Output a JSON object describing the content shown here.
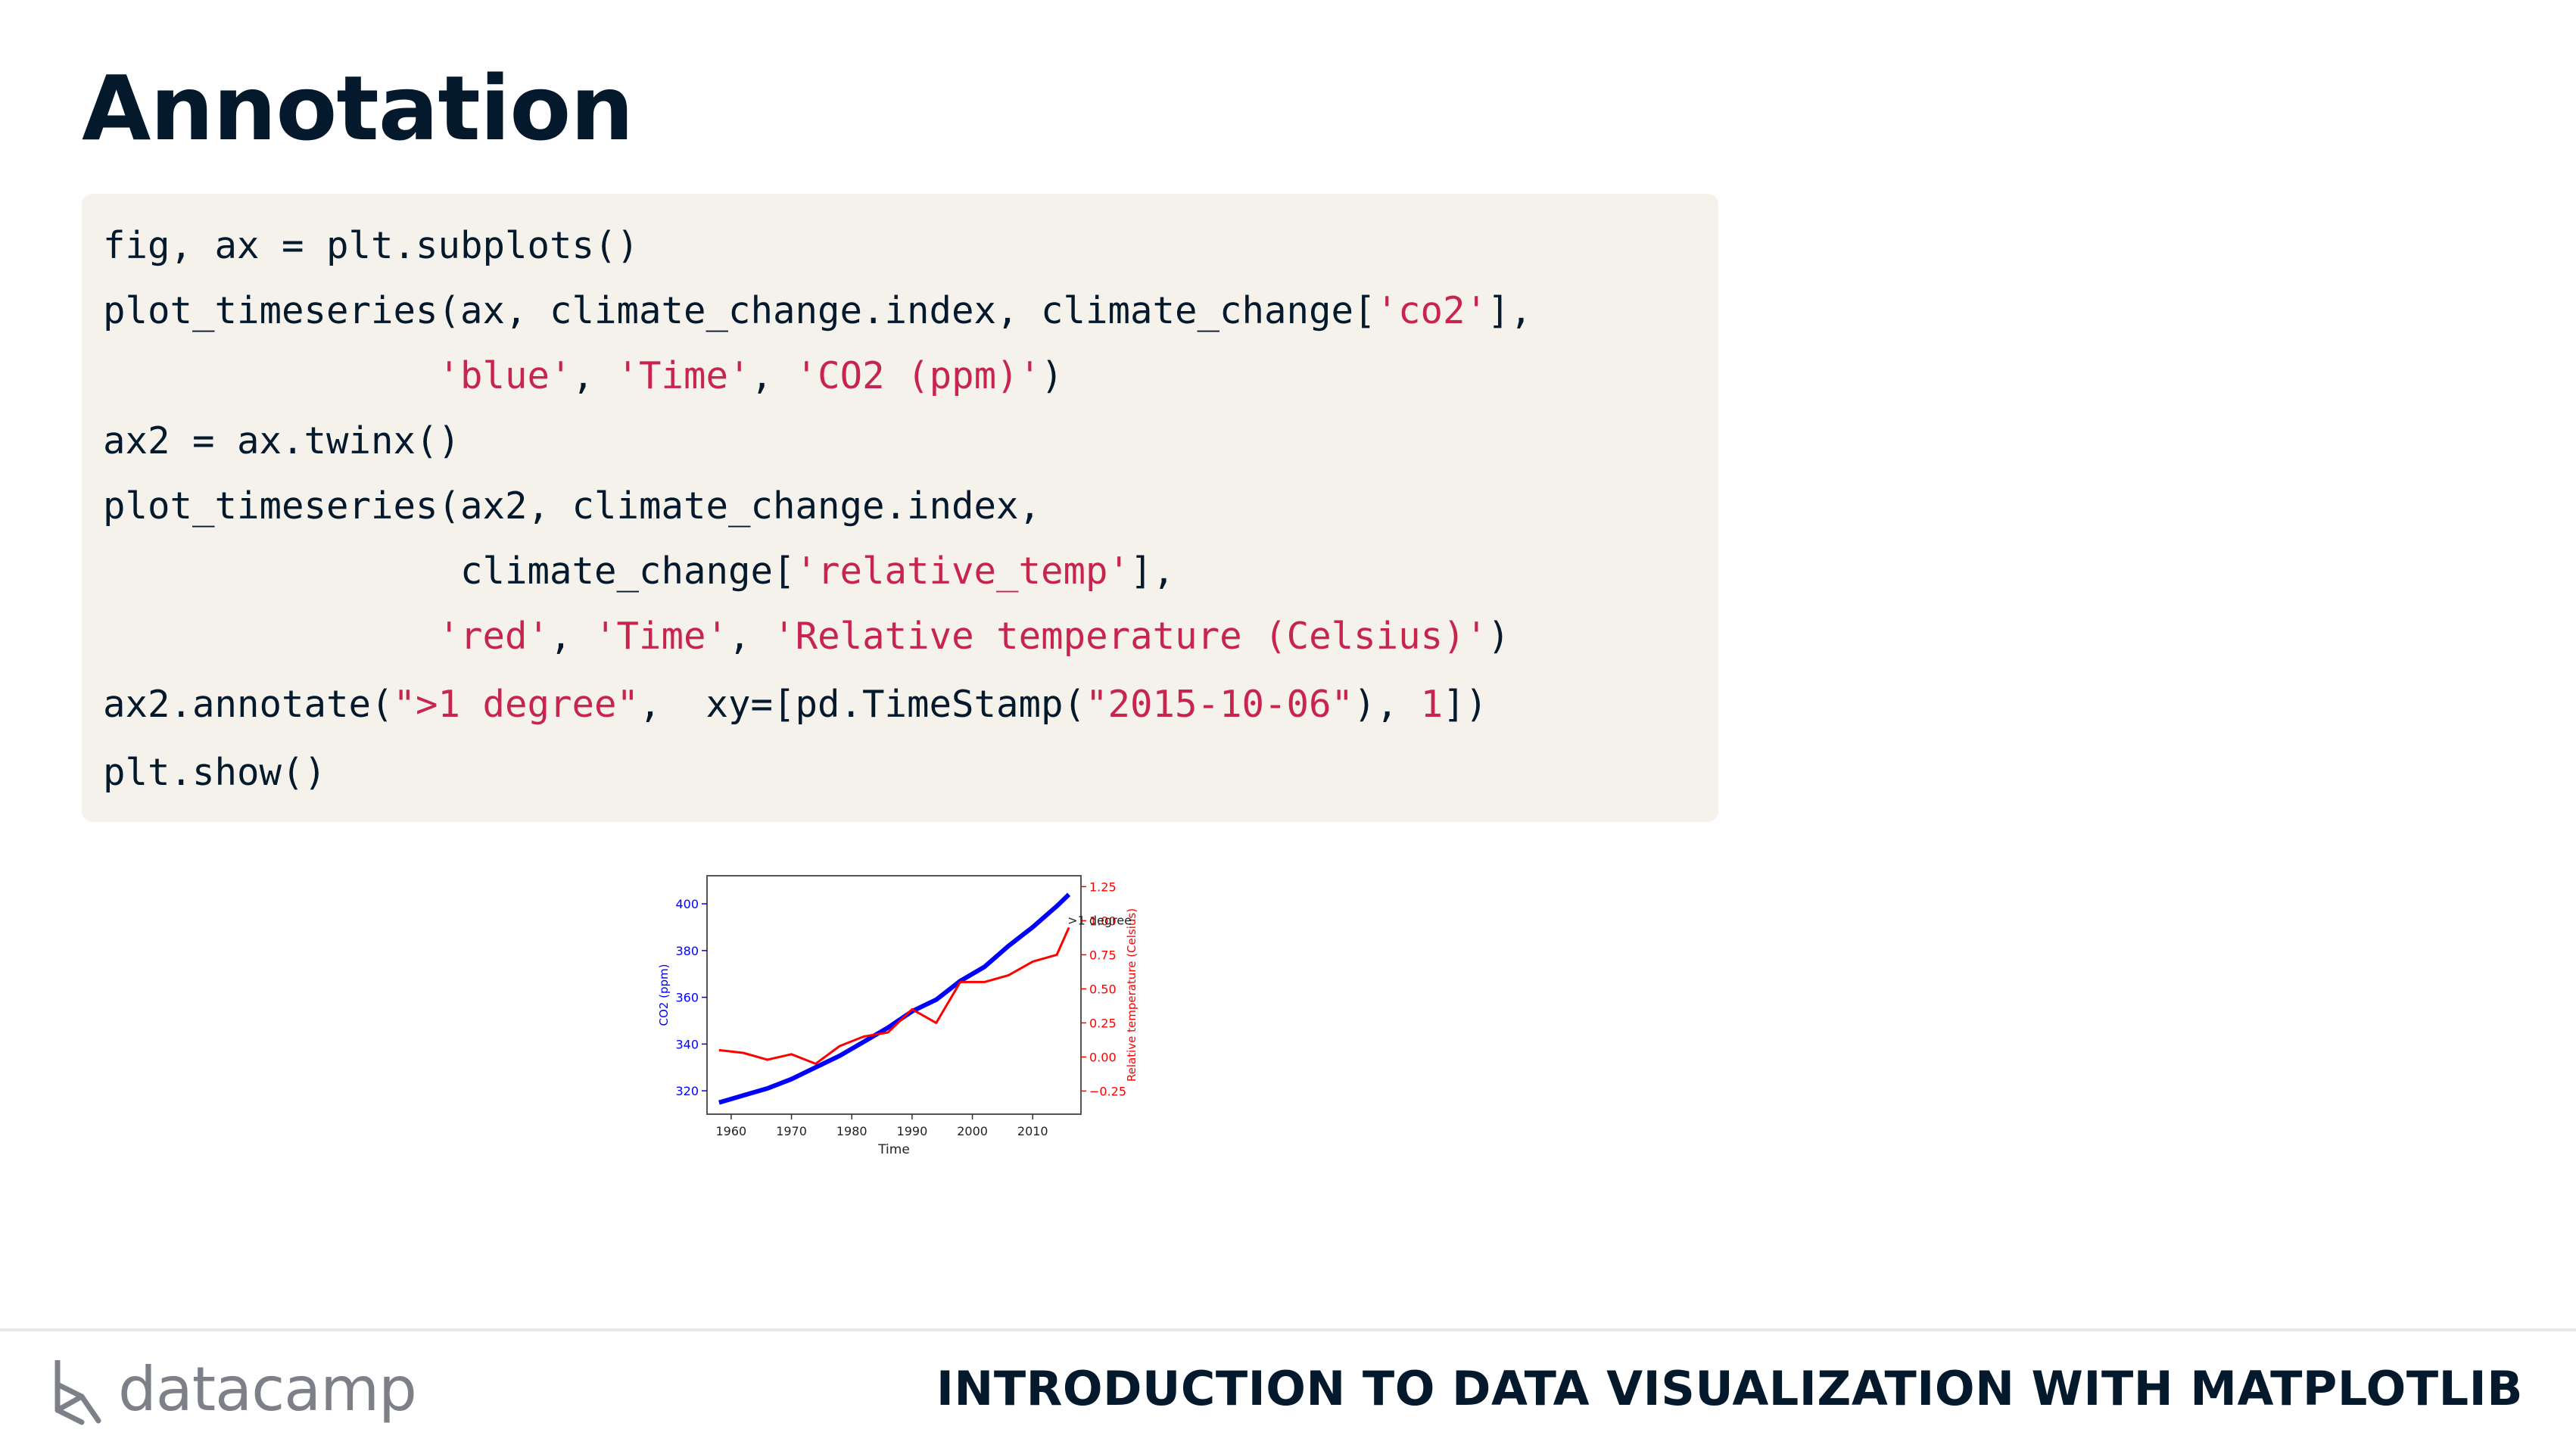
{
  "slide": {
    "title": "Annotation"
  },
  "code": {
    "lines": [
      [
        {
          "t": "fig, ax = plt.subplots()",
          "k": "plain"
        }
      ],
      [
        {
          "t": "plot_timeseries(ax, climate_change.index, climate_change[",
          "k": "plain"
        },
        {
          "t": "'co2'",
          "k": "str"
        },
        {
          "t": "],",
          "k": "plain"
        }
      ],
      [
        {
          "t": "               ",
          "k": "plain"
        },
        {
          "t": "'blue'",
          "k": "str"
        },
        {
          "t": ", ",
          "k": "plain"
        },
        {
          "t": "'Time'",
          "k": "str"
        },
        {
          "t": ", ",
          "k": "plain"
        },
        {
          "t": "'CO2 (ppm)'",
          "k": "str"
        },
        {
          "t": ")",
          "k": "plain"
        }
      ],
      [
        {
          "t": "ax2 = ax.twinx()",
          "k": "plain"
        }
      ],
      [
        {
          "t": "plot_timeseries(ax2, climate_change.index,",
          "k": "plain"
        }
      ],
      [
        {
          "t": "                climate_change[",
          "k": "plain"
        },
        {
          "t": "'relative_temp'",
          "k": "str"
        },
        {
          "t": "],",
          "k": "plain"
        }
      ],
      [
        {
          "t": "               ",
          "k": "plain"
        },
        {
          "t": "'red'",
          "k": "str"
        },
        {
          "t": ", ",
          "k": "plain"
        },
        {
          "t": "'Time'",
          "k": "str"
        },
        {
          "t": ", ",
          "k": "plain"
        },
        {
          "t": "'Relative temperature (Celsius)'",
          "k": "str"
        },
        {
          "t": ")",
          "k": "plain"
        }
      ],
      [
        {
          "t": "ax2.annotate(",
          "k": "plain"
        },
        {
          "t": "\">1 degree\"",
          "k": "str"
        },
        {
          "t": ",  xy=[pd.TimeStamp(",
          "k": "plain"
        },
        {
          "t": "\"2015-10-06\"",
          "k": "str"
        },
        {
          "t": "), ",
          "k": "plain"
        },
        {
          "t": "1",
          "k": "num"
        },
        {
          "t": "])",
          "k": "plain"
        }
      ],
      [
        {
          "t": "plt.show()",
          "k": "plain"
        }
      ]
    ]
  },
  "footer": {
    "brand": "datacamp",
    "course_title": "INTRODUCTION TO DATA VISUALIZATION WITH MATPLOTLIB"
  },
  "colors": {
    "title": "#05192d",
    "code_bg": "#f5f2ec",
    "string": "#c7254e",
    "co2_series": "#0000ff",
    "temp_series": "#ff0000"
  },
  "chart_data": {
    "type": "line",
    "title": "",
    "xlabel": "Time",
    "ylabel_left": "CO2 (ppm)",
    "ylabel_right": "Relative temperature (Celsius)",
    "x_ticks": [
      "1960",
      "1970",
      "1980",
      "1990",
      "2000",
      "2010"
    ],
    "y_left_ticks": [
      "320",
      "340",
      "360",
      "380",
      "400"
    ],
    "y_right_ticks": [
      "−0.25",
      "0.00",
      "0.25",
      "0.50",
      "0.75",
      "1.00",
      "1.25"
    ],
    "xlim": [
      1956,
      2018
    ],
    "ylim_left": [
      310,
      412
    ],
    "ylim_right": [
      -0.42,
      1.33
    ],
    "annotation": {
      "text": ">1 degree",
      "x": 2015.77,
      "y": 1
    },
    "series": [
      {
        "name": "co2",
        "axis": "left",
        "color": "#0000ff",
        "x": [
          1958,
          1962,
          1966,
          1970,
          1974,
          1978,
          1982,
          1986,
          1990,
          1994,
          1998,
          2002,
          2006,
          2010,
          2014,
          2016
        ],
        "values": [
          315,
          318,
          321,
          325,
          330,
          335,
          341,
          347,
          354,
          359,
          367,
          373,
          382,
          390,
          399,
          404
        ]
      },
      {
        "name": "relative_temp",
        "axis": "right",
        "color": "#ff0000",
        "x": [
          1958,
          1962,
          1966,
          1970,
          1974,
          1978,
          1982,
          1986,
          1990,
          1994,
          1998,
          2002,
          2006,
          2010,
          2014,
          2016
        ],
        "values": [
          0.05,
          0.03,
          -0.02,
          0.02,
          -0.05,
          0.08,
          0.15,
          0.18,
          0.35,
          0.25,
          0.55,
          0.55,
          0.6,
          0.7,
          0.75,
          0.95
        ]
      }
    ]
  }
}
